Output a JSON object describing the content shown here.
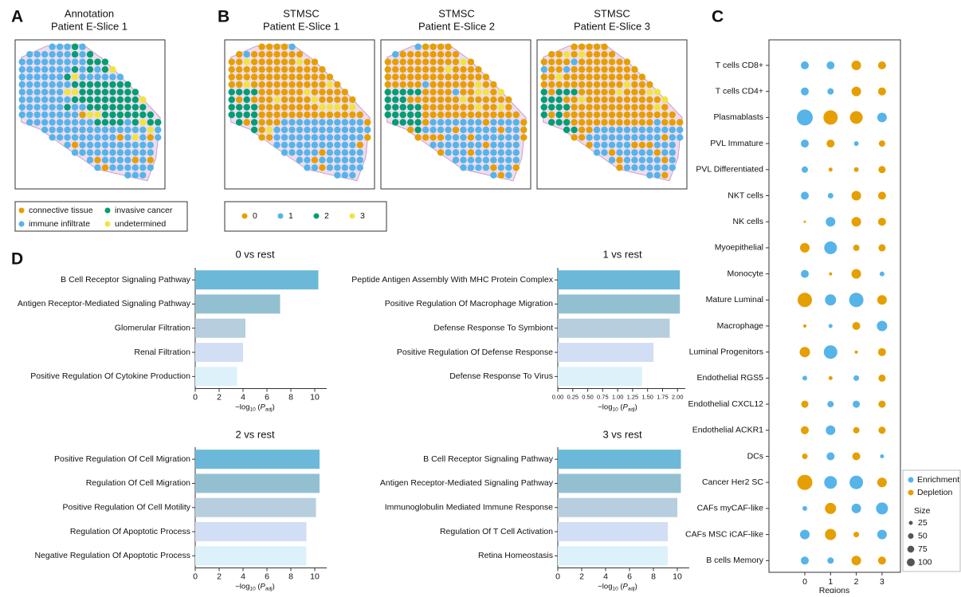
{
  "panel_labels": [
    "A",
    "B",
    "C",
    "D"
  ],
  "annotation": {
    "title": [
      "Annotation",
      "Patient E-Slice 1"
    ],
    "legend": [
      {
        "name": "connective tissue",
        "color": "#e69f00"
      },
      {
        "name": "invasive cancer",
        "color": "#009e73"
      },
      {
        "name": "immune infiltrate",
        "color": "#56b4e9"
      },
      {
        "name": "undetermined",
        "color": "#f0e442"
      }
    ]
  },
  "stmsc": {
    "slices": [
      {
        "title": [
          "STMSC",
          "Patient E-Slice 1"
        ]
      },
      {
        "title": [
          "STMSC",
          "Patient E-Slice 2"
        ]
      },
      {
        "title": [
          "STMSC",
          "Patient E-Slice 3"
        ]
      }
    ],
    "legend": [
      {
        "name": "0",
        "color": "#e69f00"
      },
      {
        "name": "1",
        "color": "#56b4e9"
      },
      {
        "name": "2",
        "color": "#009e73"
      },
      {
        "name": "3",
        "color": "#f0e442"
      }
    ]
  },
  "chart_data": [
    {
      "type": "dot",
      "categories": [
        "T cells CD8+",
        "T cells CD4+",
        "Plasmablasts",
        "PVL Immature",
        "PVL Differentiated",
        "NKT cells",
        "NK cells",
        "Myoepithelial",
        "Monocyte",
        "Mature Luminal",
        "Macrophage",
        "Luminal Progenitors",
        "Endothelial RGS5",
        "Endothelial CXCL12",
        "Endothelial ACKR1",
        "DCs",
        "Cancer Her2 SC",
        "CAFs myCAF-like",
        "CAFs MSC iCAF-like",
        "B cells Memory"
      ],
      "x": [
        "0",
        "1",
        "2",
        "3"
      ],
      "xlabel": "Regions",
      "series": [
        {
          "name": "Enrichment",
          "color": "#56b4e9"
        },
        {
          "name": "Depletion",
          "color": "#e69f00"
        }
      ],
      "sizes": [
        [
          100,
          100,
          144,
          100
        ],
        [
          100,
          64,
          144,
          100
        ],
        [
          400,
          324,
          256,
          144
        ],
        [
          100,
          100,
          36,
          64
        ],
        [
          64,
          25,
          36,
          81
        ],
        [
          100,
          49,
          144,
          100
        ],
        [
          9,
          144,
          144,
          100
        ],
        [
          144,
          256,
          64,
          81
        ],
        [
          100,
          16,
          144,
          36
        ],
        [
          324,
          196,
          324,
          144
        ],
        [
          16,
          25,
          100,
          169
        ],
        [
          169,
          289,
          16,
          100
        ],
        [
          36,
          25,
          49,
          81
        ],
        [
          81,
          64,
          81,
          81
        ],
        [
          100,
          144,
          64,
          81
        ],
        [
          49,
          100,
          100,
          25
        ],
        [
          361,
          256,
          289,
          144
        ],
        [
          36,
          196,
          144,
          225
        ],
        [
          144,
          196,
          49,
          144
        ],
        [
          100,
          64,
          144,
          100
        ]
      ],
      "groups": [
        [
          0,
          0,
          1,
          1
        ],
        [
          0,
          0,
          1,
          1
        ],
        [
          0,
          1,
          1,
          0
        ],
        [
          0,
          1,
          0,
          1
        ],
        [
          0,
          1,
          1,
          1
        ],
        [
          0,
          0,
          1,
          1
        ],
        [
          1,
          0,
          1,
          1
        ],
        [
          1,
          0,
          1,
          1
        ],
        [
          0,
          1,
          1,
          0
        ],
        [
          1,
          0,
          0,
          1
        ],
        [
          1,
          0,
          1,
          0
        ],
        [
          1,
          0,
          1,
          1
        ],
        [
          0,
          1,
          0,
          1
        ],
        [
          1,
          0,
          0,
          1
        ],
        [
          1,
          0,
          1,
          1
        ],
        [
          1,
          0,
          1,
          0
        ],
        [
          1,
          0,
          0,
          1
        ],
        [
          0,
          1,
          0,
          0
        ],
        [
          0,
          1,
          1,
          0
        ],
        [
          0,
          0,
          1,
          1
        ]
      ],
      "size_legend": {
        "title": "Size",
        "values": [
          25,
          50,
          75,
          100
        ]
      }
    },
    {
      "type": "hbar",
      "title": "0 vs rest",
      "categories": [
        "B Cell Receptor Signaling Pathway",
        "Antigen Receptor-Mediated Signaling Pathway",
        "Glomerular Filtration",
        "Renal Filtration",
        "Positive Regulation Of Cytokine Production"
      ],
      "values": [
        10.3,
        7.1,
        4.2,
        4.0,
        3.5
      ],
      "colors": [
        "#6bb8d9",
        "#93c0d1",
        "#b6cede",
        "#d2def4",
        "#dcf1f9"
      ],
      "xlim": [
        0,
        11
      ],
      "xticks": [
        0,
        2,
        4,
        6,
        8,
        10
      ],
      "xlabel": [
        "−log",
        "10",
        " (",
        "P",
        "adj",
        ")"
      ]
    },
    {
      "type": "hbar",
      "title": "1 vs rest",
      "categories": [
        "Peptide Antigen Assembly With MHC Protein Complex",
        "Positive Regulation Of Macrophage Migration",
        "Defense Response To Symbiont",
        "Positive Regulation Of Defense Response",
        "Defense Response To Virus"
      ],
      "values": [
        2.04,
        2.04,
        1.87,
        1.6,
        1.41
      ],
      "colors": [
        "#6bb8d9",
        "#93c0d1",
        "#b6cede",
        "#d2def4",
        "#dcf1f9"
      ],
      "xlim": [
        0,
        2.13
      ],
      "xticks": [
        {
          "value": 0,
          "label": "0.00"
        },
        {
          "value": 0.25,
          "label": "0.25"
        },
        {
          "value": 0.5,
          "label": "0.50"
        },
        {
          "value": 0.75,
          "label": "0.75"
        },
        {
          "value": 1,
          "label": "1.00"
        },
        {
          "value": 1.25,
          "label": "1.25"
        },
        {
          "value": 1.5,
          "label": "1.50"
        },
        {
          "value": 1.75,
          "label": "1.75"
        },
        {
          "value": 2,
          "label": "2.00"
        }
      ],
      "xlabel": [
        "−log",
        "10",
        " (",
        "P",
        "adj",
        ")"
      ]
    },
    {
      "type": "hbar",
      "title": "2 vs rest",
      "categories": [
        "Positive Regulation Of Cell Migration",
        "Regulation Of Cell Migration",
        "Positive Regulation Of Cell Motility",
        "Regulation Of Apoptotic Process",
        "Negative Regulation Of Apoptotic Process"
      ],
      "values": [
        10.4,
        10.4,
        10.1,
        9.3,
        9.3
      ],
      "colors": [
        "#6bb8d9",
        "#93c0d1",
        "#b6cede",
        "#d2def4",
        "#dcf1f9"
      ],
      "xlim": [
        0,
        11
      ],
      "xticks": [
        0,
        2,
        4,
        6,
        8,
        10
      ],
      "xlabel": [
        "−log",
        "10",
        " (",
        "P",
        "adj",
        ")"
      ]
    },
    {
      "type": "hbar",
      "title": "3 vs rest",
      "categories": [
        "B Cell Receptor Signaling Pathway",
        "Antigen Receptor-Mediated Signaling Pathway",
        "Immunoglobulin Mediated Immune Response",
        "Regulation Of T Cell Activation",
        "Retina Homeostasis"
      ],
      "values": [
        10.3,
        10.3,
        10.0,
        9.2,
        9.2
      ],
      "colors": [
        "#6bb8d9",
        "#93c0d1",
        "#b6cede",
        "#d2def4",
        "#dcf1f9"
      ],
      "xlim": [
        0,
        11
      ],
      "xticks": [
        0,
        2,
        4,
        6,
        8,
        10
      ],
      "xlabel": [
        "−log",
        "10",
        " (",
        "P",
        "adj",
        ")"
      ]
    }
  ]
}
